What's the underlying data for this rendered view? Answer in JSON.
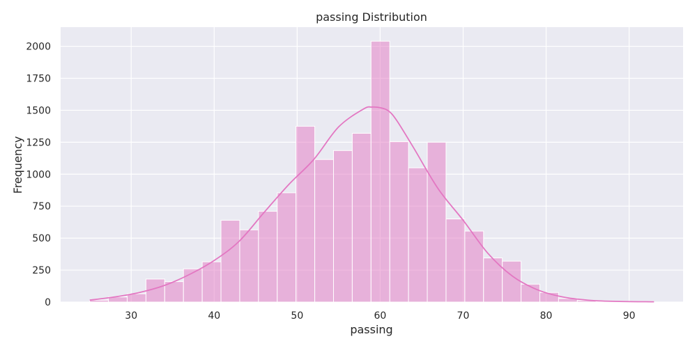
{
  "chart_data": {
    "type": "bar",
    "subtype": "histogram-with-kde",
    "title": "passing Distribution",
    "xlabel": "passing",
    "ylabel": "Frequency",
    "xlim": [
      21.5,
      96.5
    ],
    "ylim": [
      0,
      2150
    ],
    "xticks": [
      30,
      40,
      50,
      60,
      70,
      80,
      90
    ],
    "yticks": [
      0,
      250,
      500,
      750,
      1000,
      1250,
      1500,
      1750,
      2000
    ],
    "grid": true,
    "color": "#e377c2",
    "bins": [
      {
        "x0": 25.0,
        "x1": 27.26,
        "count": 15
      },
      {
        "x0": 27.26,
        "x1": 29.52,
        "count": 40
      },
      {
        "x0": 29.52,
        "x1": 31.78,
        "count": 65
      },
      {
        "x0": 31.78,
        "x1": 34.04,
        "count": 180
      },
      {
        "x0": 34.04,
        "x1": 36.3,
        "count": 160
      },
      {
        "x0": 36.3,
        "x1": 38.56,
        "count": 260
      },
      {
        "x0": 38.56,
        "x1": 40.82,
        "count": 315
      },
      {
        "x0": 40.82,
        "x1": 43.08,
        "count": 640
      },
      {
        "x0": 43.08,
        "x1": 45.34,
        "count": 565
      },
      {
        "x0": 45.34,
        "x1": 47.6,
        "count": 710
      },
      {
        "x0": 47.6,
        "x1": 49.86,
        "count": 855
      },
      {
        "x0": 49.86,
        "x1": 52.12,
        "count": 1375
      },
      {
        "x0": 52.12,
        "x1": 54.38,
        "count": 1115
      },
      {
        "x0": 54.38,
        "x1": 56.64,
        "count": 1185
      },
      {
        "x0": 56.64,
        "x1": 58.9,
        "count": 1320
      },
      {
        "x0": 58.9,
        "x1": 61.16,
        "count": 2040
      },
      {
        "x0": 61.16,
        "x1": 63.42,
        "count": 1255
      },
      {
        "x0": 63.42,
        "x1": 65.68,
        "count": 1050
      },
      {
        "x0": 65.68,
        "x1": 67.94,
        "count": 1250
      },
      {
        "x0": 67.94,
        "x1": 70.2,
        "count": 650
      },
      {
        "x0": 70.2,
        "x1": 72.46,
        "count": 555
      },
      {
        "x0": 72.46,
        "x1": 74.72,
        "count": 345
      },
      {
        "x0": 74.72,
        "x1": 76.98,
        "count": 320
      },
      {
        "x0": 76.98,
        "x1": 79.24,
        "count": 140
      },
      {
        "x0": 79.24,
        "x1": 81.5,
        "count": 75
      },
      {
        "x0": 81.5,
        "x1": 83.76,
        "count": 28
      },
      {
        "x0": 83.76,
        "x1": 86.02,
        "count": 12
      },
      {
        "x0": 86.02,
        "x1": 88.28,
        "count": 5
      },
      {
        "x0": 88.28,
        "x1": 90.54,
        "count": 3
      },
      {
        "x0": 90.54,
        "x1": 92.8,
        "count": 2
      }
    ],
    "kde": {
      "x": [
        25,
        28,
        31,
        34,
        37,
        40,
        43,
        46,
        49,
        52,
        55,
        58,
        59,
        60,
        61,
        62,
        64,
        67,
        70,
        73,
        76,
        79,
        82,
        85,
        88,
        93
      ],
      "y": [
        15,
        40,
        75,
        130,
        215,
        325,
        475,
        700,
        920,
        1115,
        1370,
        1510,
        1525,
        1520,
        1495,
        1420,
        1210,
        885,
        640,
        380,
        200,
        95,
        40,
        15,
        6,
        2
      ]
    }
  }
}
